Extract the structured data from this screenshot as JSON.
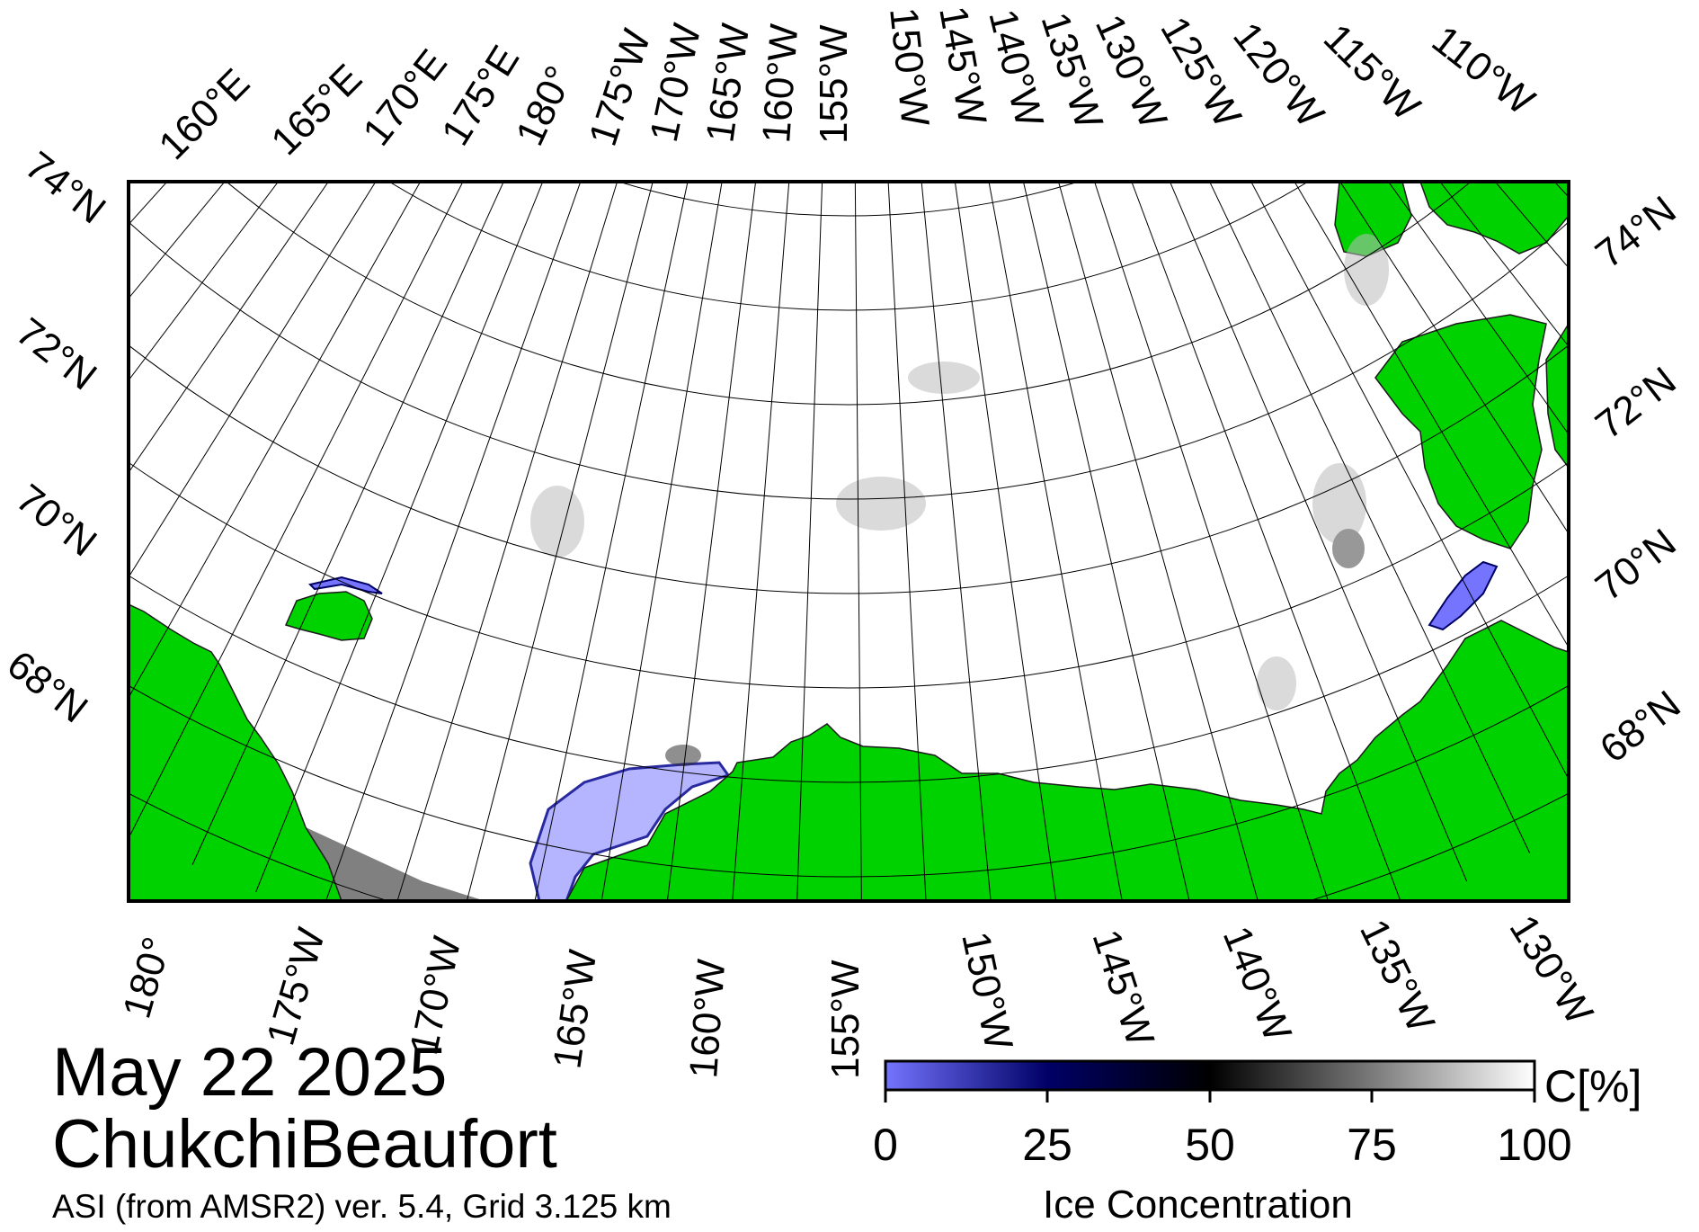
{
  "title": {
    "date": "May 22 2025",
    "region": "ChukchiBeaufort",
    "product": "ASI (from AMSR2) ver. 5.4,  Grid 3.125 km"
  },
  "colorbar": {
    "title": "Ice Concentration",
    "unit": "C[%]",
    "ticks": [
      "0",
      "25",
      "50",
      "75",
      "100"
    ],
    "range": [
      0,
      100
    ],
    "colors": [
      "#7474ff",
      "#000066",
      "#000000",
      "#7a7a7a",
      "#ffffff"
    ]
  },
  "map": {
    "top_lon_labels": [
      "160°E",
      "165°E",
      "170°E",
      "175°E",
      "180°",
      "175°W",
      "170°W",
      "165°W",
      "160°W",
      "155°W",
      "150°W",
      "145°W",
      "140°W",
      "135°W",
      "130°W",
      "125°W",
      "120°W",
      "115°W",
      "110°W"
    ],
    "bottom_lon_labels": [
      "180°",
      "175°W",
      "170°W",
      "165°W",
      "160°W",
      "155°W",
      "150°W",
      "145°W",
      "140°W",
      "135°W",
      "130°W"
    ],
    "left_lat_labels": [
      "74°N",
      "72°N",
      "70°N",
      "68°N"
    ],
    "right_lat_labels": [
      "74°N",
      "72°N",
      "70°N",
      "68°N"
    ],
    "colors": {
      "land": "#00d200",
      "open_water": "#ffffff",
      "low_ice": "#b4b4ff",
      "no_data": "#808080",
      "frame": "#000000"
    }
  }
}
